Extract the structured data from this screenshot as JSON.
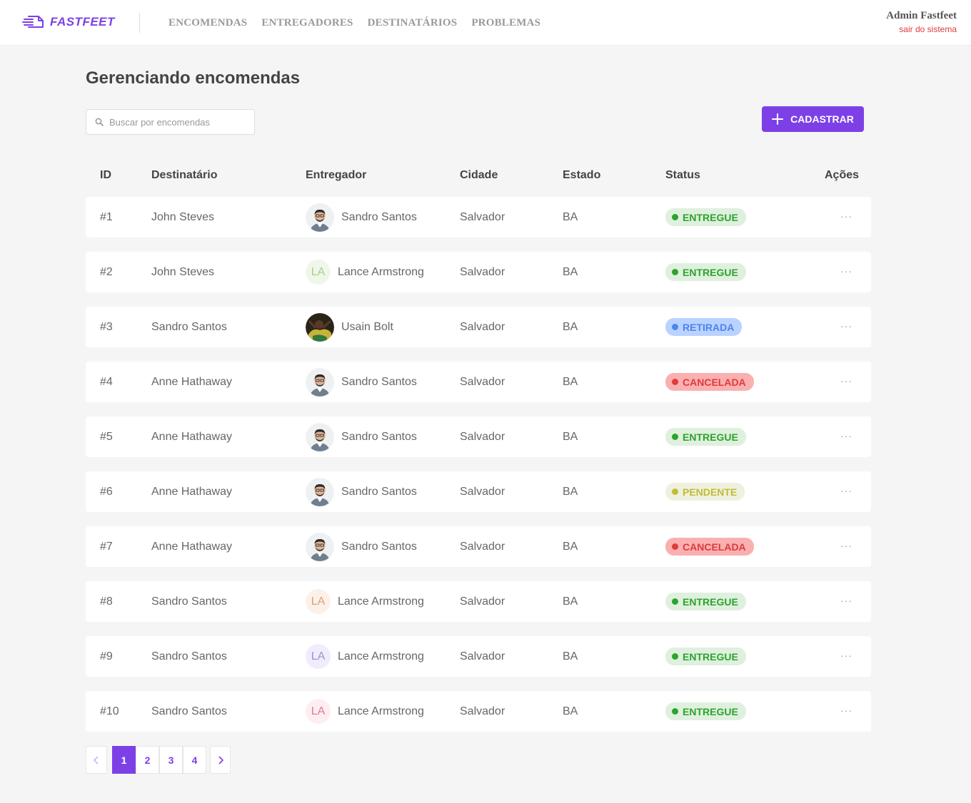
{
  "header": {
    "logo_text": "FASTFEET",
    "nav": [
      {
        "label": "ENCOMENDAS"
      },
      {
        "label": "ENTREGADORES"
      },
      {
        "label": "DESTINATÁRIOS"
      },
      {
        "label": "PROBLEMAS"
      }
    ],
    "user_name": "Admin Fastfeet",
    "logout_label": "sair do sistema"
  },
  "page": {
    "title": "Gerenciando encomendas",
    "search_placeholder": "Buscar por encomendas",
    "add_button_label": "CADASTRAR"
  },
  "table": {
    "columns": {
      "id": "ID",
      "recipient": "Destinatário",
      "deliveryman": "Entregador",
      "city": "Cidade",
      "state": "Estado",
      "status": "Status",
      "actions": "Ações"
    },
    "rows": [
      {
        "id": "#1",
        "recipient": "John Steves",
        "deliveryman": "Sandro Santos",
        "avatar": "photo-sandro",
        "city": "Salvador",
        "state": "BA",
        "status": "ENTREGUE",
        "status_key": "entregue"
      },
      {
        "id": "#2",
        "recipient": "John Steves",
        "deliveryman": "Lance Armstrong",
        "avatar": "initials",
        "initials": "LA",
        "initials_color": "#a8d080",
        "initials_bg": "#f0f7ea",
        "city": "Salvador",
        "state": "BA",
        "status": "ENTREGUE",
        "status_key": "entregue"
      },
      {
        "id": "#3",
        "recipient": "Sandro Santos",
        "deliveryman": "Usain Bolt",
        "avatar": "photo-usain",
        "city": "Salvador",
        "state": "BA",
        "status": "RETIRADA",
        "status_key": "retirada"
      },
      {
        "id": "#4",
        "recipient": "Anne Hathaway",
        "deliveryman": "Sandro Santos",
        "avatar": "photo-sandro",
        "city": "Salvador",
        "state": "BA",
        "status": "CANCELADA",
        "status_key": "cancelada"
      },
      {
        "id": "#5",
        "recipient": "Anne Hathaway",
        "deliveryman": "Sandro Santos",
        "avatar": "photo-sandro",
        "city": "Salvador",
        "state": "BA",
        "status": "ENTREGUE",
        "status_key": "entregue"
      },
      {
        "id": "#6",
        "recipient": "Anne Hathaway",
        "deliveryman": "Sandro Santos",
        "avatar": "photo-sandro",
        "city": "Salvador",
        "state": "BA",
        "status": "PENDENTE",
        "status_key": "pendente"
      },
      {
        "id": "#7",
        "recipient": "Anne Hathaway",
        "deliveryman": "Sandro Santos",
        "avatar": "photo-sandro",
        "city": "Salvador",
        "state": "BA",
        "status": "CANCELADA",
        "status_key": "cancelada"
      },
      {
        "id": "#8",
        "recipient": "Sandro Santos",
        "deliveryman": "Lance Armstrong",
        "avatar": "initials",
        "initials": "LA",
        "initials_color": "#e0a070",
        "initials_bg": "#fcf1e9",
        "city": "Salvador",
        "state": "BA",
        "status": "ENTREGUE",
        "status_key": "entregue"
      },
      {
        "id": "#9",
        "recipient": "Sandro Santos",
        "deliveryman": "Lance Armstrong",
        "avatar": "initials",
        "initials": "LA",
        "initials_color": "#a28fd0",
        "initials_bg": "#f1ecfb",
        "city": "Salvador",
        "state": "BA",
        "status": "ENTREGUE",
        "status_key": "entregue"
      },
      {
        "id": "#10",
        "recipient": "Sandro Santos",
        "deliveryman": "Lance Armstrong",
        "avatar": "initials",
        "initials": "LA",
        "initials_color": "#e07a98",
        "initials_bg": "#fdeef2",
        "city": "Salvador",
        "state": "BA",
        "status": "ENTREGUE",
        "status_key": "entregue"
      }
    ],
    "actions_glyph": "···"
  },
  "pagination": {
    "pages": [
      "1",
      "2",
      "3",
      "4"
    ],
    "current": "1"
  },
  "colors": {
    "accent": "#7d40e7",
    "entregue": "#2ca42b",
    "retirada": "#4d85ee",
    "cancelada": "#de3b3b",
    "pendente": "#c1bc35"
  }
}
